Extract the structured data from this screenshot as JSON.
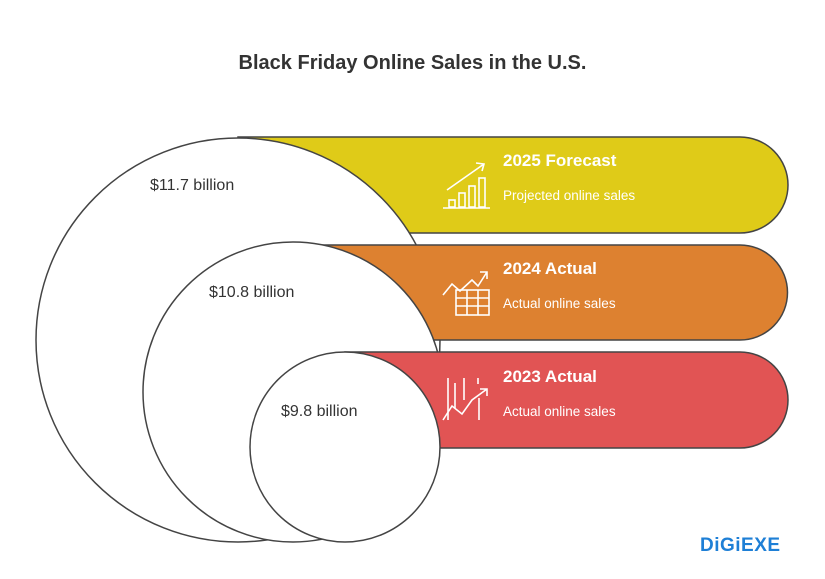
{
  "title": "Black Friday Online Sales in the U.S.",
  "items": [
    {
      "value": "$11.7 billion",
      "heading": "2025 Forecast",
      "subtext": "Projected online sales",
      "color": "#dfcb18",
      "icon": "rising-bar-chart-icon"
    },
    {
      "value": "$10.8 billion",
      "heading": "2024 Actual",
      "subtext": "Actual online sales",
      "color": "#dd8130",
      "icon": "trend-table-icon"
    },
    {
      "value": "$9.8 billion",
      "heading": "2023 Actual",
      "subtext": "Actual online sales",
      "color": "#e15454",
      "icon": "trend-lines-icon"
    }
  ],
  "logo": "DiGiEXE"
}
